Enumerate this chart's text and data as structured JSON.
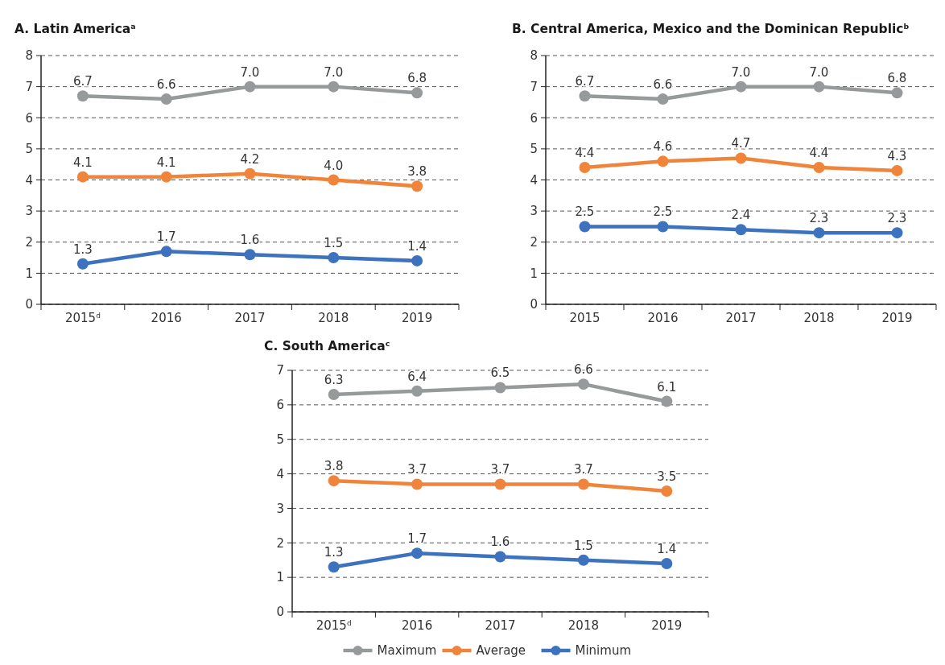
{
  "chart_data": [
    {
      "type": "line",
      "title": "A. Latin America$^{a}$",
      "categories": [
        "2015$^{d}$",
        "2016",
        "2017",
        "2018",
        "2019"
      ],
      "ylim": [
        0,
        8
      ],
      "yticks": [
        0,
        1,
        2,
        3,
        4,
        5,
        6,
        7,
        8
      ],
      "grid": "y",
      "legend": false,
      "marker": "circle",
      "line_style": "solid",
      "series": [
        {
          "color": "#969a9b",
          "values": [
            6.7,
            6.6,
            7,
            7,
            6.8
          ],
          "value_labels": [
            "6.7",
            "6.6",
            "7.0",
            "7.0",
            "6.8"
          ]
        },
        {
          "color": "#f0843a",
          "values": [
            4.1,
            4.1,
            4.2,
            4,
            3.8
          ],
          "value_labels": [
            "4.1",
            "4.1",
            "4.2",
            "4.0",
            "3.8"
          ]
        },
        {
          "color": "#3d72bf",
          "values": [
            1.3,
            1.7,
            1.6,
            1.5,
            1.4
          ],
          "value_labels": [
            "1.3",
            "1.7",
            "1.6",
            "1.5",
            "1.4"
          ]
        }
      ]
    },
    {
      "type": "line",
      "title": "B. Central America, Mexico and the Dominican Republic$^{b}$",
      "categories": [
        "2015",
        "2016",
        "2017",
        "2018",
        "2019"
      ],
      "ylim": [
        0,
        8
      ],
      "yticks": [
        0,
        1,
        2,
        3,
        4,
        5,
        6,
        7,
        8
      ],
      "grid": "y",
      "legend": false,
      "marker": "circle",
      "line_style": "solid",
      "data_labels": true,
      "series": [
        {
          "color": "#969a9b",
          "values": [
            6.7,
            6.6,
            7,
            7,
            6.8
          ],
          "value_labels": [
            "6.7",
            "6.6",
            "7.0",
            "7.0",
            "6.8"
          ]
        },
        {
          "color": "#f0843a",
          "values": [
            4.4,
            4.6,
            4.7,
            4.4,
            4.3
          ]
        },
        {
          "color": "#3d72bf",
          "values": [
            2.5,
            2.5,
            2.4,
            2.3,
            2.3
          ]
        }
      ]
    },
    {
      "type": "line",
      "title": "C. South America$^{c}$",
      "categories": [
        "2015$^{d}$",
        "2016",
        "2017",
        "2018",
        "2019"
      ],
      "ylim": [
        0,
        7
      ],
      "yticks": [
        0,
        1,
        2,
        3,
        4,
        5,
        6,
        7
      ],
      "grid": "y",
      "legend": "bottom",
      "marker": "circle",
      "line_style": "solid",
      "data_labels": true,
      "series": [
        {
          "name": "Maximum",
          "color": "#969a9b",
          "values": [
            6.3,
            6.4,
            6.5,
            6.6,
            6.1
          ]
        },
        {
          "name": "Average",
          "color": "#f0843a",
          "values": [
            3.8,
            3.7,
            3.7,
            3.7,
            3.5
          ]
        },
        {
          "name": "Minimum",
          "color": "#3d72bf",
          "values": [
            1.3,
            1.7,
            1.6,
            1.5,
            1.4
          ]
        }
      ]
    }
  ]
}
